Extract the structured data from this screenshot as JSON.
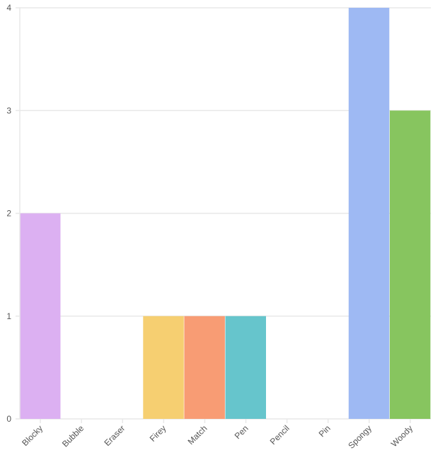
{
  "chart_data": {
    "type": "bar",
    "title": "",
    "xlabel": "",
    "ylabel": "",
    "categories": [
      "Blocky",
      "Bubble",
      "Eraser",
      "Firey",
      "Match",
      "Pen",
      "Pencil",
      "Pin",
      "Spongy",
      "Woody"
    ],
    "values": [
      2,
      0,
      0,
      1,
      1,
      1,
      0,
      0,
      4,
      3
    ],
    "colors": [
      "#dcb0f2",
      "#cccccc",
      "#cccccc",
      "#f6cf71",
      "#f89c74",
      "#66c5cc",
      "#cccccc",
      "#cccccc",
      "#9eb9f3",
      "#87c55f"
    ],
    "ylim": [
      0,
      4
    ],
    "yticks": [
      0,
      1,
      2,
      3,
      4
    ],
    "grid": true,
    "legend": null,
    "x_tick_rotation": -45
  },
  "style": {
    "grid_color": "#e8e8e8",
    "axis_color": "#e8e8e8",
    "label_color": "#555555"
  }
}
